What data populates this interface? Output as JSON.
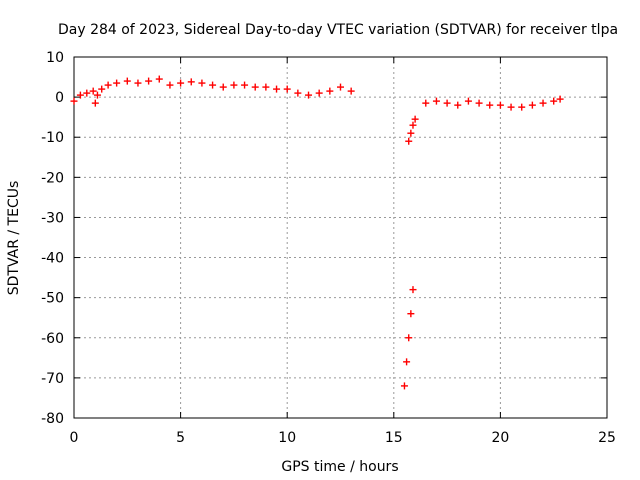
{
  "chart_data": {
    "type": "scatter",
    "title": "Day 284 of 2023, Sidereal Day-to-day VTEC variation (SDTVAR) for receiver tlpa",
    "xlabel": "GPS time / hours",
    "ylabel": "SDTVAR / TECUs",
    "xlim": [
      0,
      25
    ],
    "ylim": [
      -80,
      10
    ],
    "xticks": [
      0,
      5,
      10,
      15,
      20,
      25
    ],
    "yticks": [
      10,
      0,
      -10,
      -20,
      -30,
      -40,
      -50,
      -60,
      -70,
      -80
    ],
    "grid": true,
    "marker": "+",
    "color": "#ff0000",
    "series": [
      {
        "name": "SDTVAR",
        "segments": [
          {
            "x": [
              0.0,
              0.3,
              0.6,
              0.9,
              1.0,
              1.1,
              1.3,
              1.6,
              2.0,
              2.5,
              3.0,
              3.5,
              4.0,
              4.5,
              5.0,
              5.5,
              6.0,
              6.5,
              7.0,
              7.5,
              8.0,
              8.5,
              9.0,
              9.5,
              10.0,
              10.5,
              11.0,
              11.5,
              12.0,
              12.5,
              13.0
            ],
            "y": [
              -1.0,
              0.5,
              1.0,
              1.5,
              -1.5,
              0.5,
              2.0,
              3.0,
              3.5,
              4.0,
              3.5,
              4.0,
              4.5,
              3.0,
              3.5,
              3.8,
              3.5,
              3.0,
              2.5,
              3.0,
              3.0,
              2.5,
              2.5,
              2.0,
              2.0,
              1.0,
              0.5,
              1.0,
              1.5,
              2.5,
              1.5
            ]
          },
          {
            "x": [
              15.5,
              15.6,
              15.7,
              15.8,
              15.9
            ],
            "y": [
              -72.0,
              -66.0,
              -60.0,
              -54.0,
              -48.0
            ]
          },
          {
            "x": [
              15.7,
              15.8,
              15.9,
              16.0
            ],
            "y": [
              -11.0,
              -9.0,
              -7.0,
              -5.5
            ]
          },
          {
            "x": [
              16.5,
              17.0,
              17.5,
              18.0,
              18.5,
              19.0,
              19.5,
              20.0,
              20.5,
              21.0,
              21.5,
              22.0,
              22.5,
              22.8
            ],
            "y": [
              -1.5,
              -1.0,
              -1.5,
              -2.0,
              -1.0,
              -1.5,
              -2.0,
              -2.0,
              -2.5,
              -2.5,
              -2.0,
              -1.5,
              -1.0,
              -0.5
            ]
          }
        ]
      }
    ]
  }
}
